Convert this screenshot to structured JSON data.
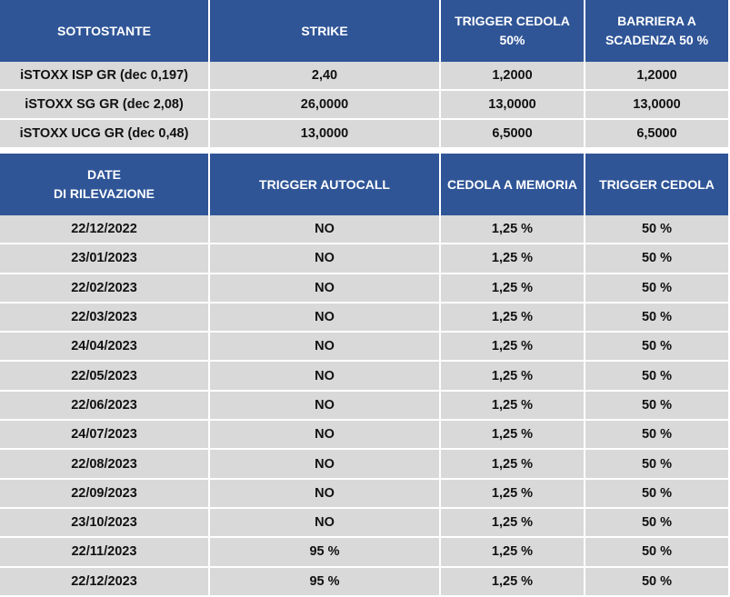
{
  "underlyings": {
    "headers": [
      "SOTTOSTANTE",
      "STRIKE",
      "TRIGGER CEDOLA\n50%",
      "BARRIERA A\nSCADENZA 50 %"
    ],
    "rows": [
      [
        "iSTOXX ISP GR (dec 0,197)",
        "2,40",
        "1,2000",
        "1,2000"
      ],
      [
        "iSTOXX SG GR (dec 2,08)",
        "26,0000",
        "13,0000",
        "13,0000"
      ],
      [
        "iSTOXX  UCG GR (dec 0,48)",
        "13,0000",
        "6,5000",
        "6,5000"
      ]
    ]
  },
  "schedule": {
    "headers": [
      "DATE\nDI RILEVAZIONE",
      "TRIGGER AUTOCALL",
      "CEDOLA A MEMORIA",
      "TRIGGER CEDOLA"
    ],
    "rows": [
      [
        "22/12/2022",
        "NO",
        "1,25 %",
        "50 %"
      ],
      [
        "23/01/2023",
        "NO",
        "1,25 %",
        "50 %"
      ],
      [
        "22/02/2023",
        "NO",
        "1,25 %",
        "50 %"
      ],
      [
        "22/03/2023",
        "NO",
        "1,25 %",
        "50 %"
      ],
      [
        "24/04/2023",
        "NO",
        "1,25 %",
        "50 %"
      ],
      [
        "22/05/2023",
        "NO",
        "1,25 %",
        "50 %"
      ],
      [
        "22/06/2023",
        "NO",
        "1,25 %",
        "50 %"
      ],
      [
        "24/07/2023",
        "NO",
        "1,25 %",
        "50 %"
      ],
      [
        "22/08/2023",
        "NO",
        "1,25 %",
        "50 %"
      ],
      [
        "22/09/2023",
        "NO",
        "1,25 %",
        "50 %"
      ],
      [
        "23/10/2023",
        "NO",
        "1,25 %",
        "50 %"
      ],
      [
        "22/11/2023",
        "95 %",
        "1,25 %",
        "50 %"
      ],
      [
        "22/12/2023",
        "95 %",
        "1,25 %",
        "50 %"
      ]
    ]
  },
  "colors": {
    "header_bg": "#2f5597",
    "header_text": "#ffffff",
    "cell_bg": "#d9d9d9",
    "cell_text": "#111111"
  }
}
